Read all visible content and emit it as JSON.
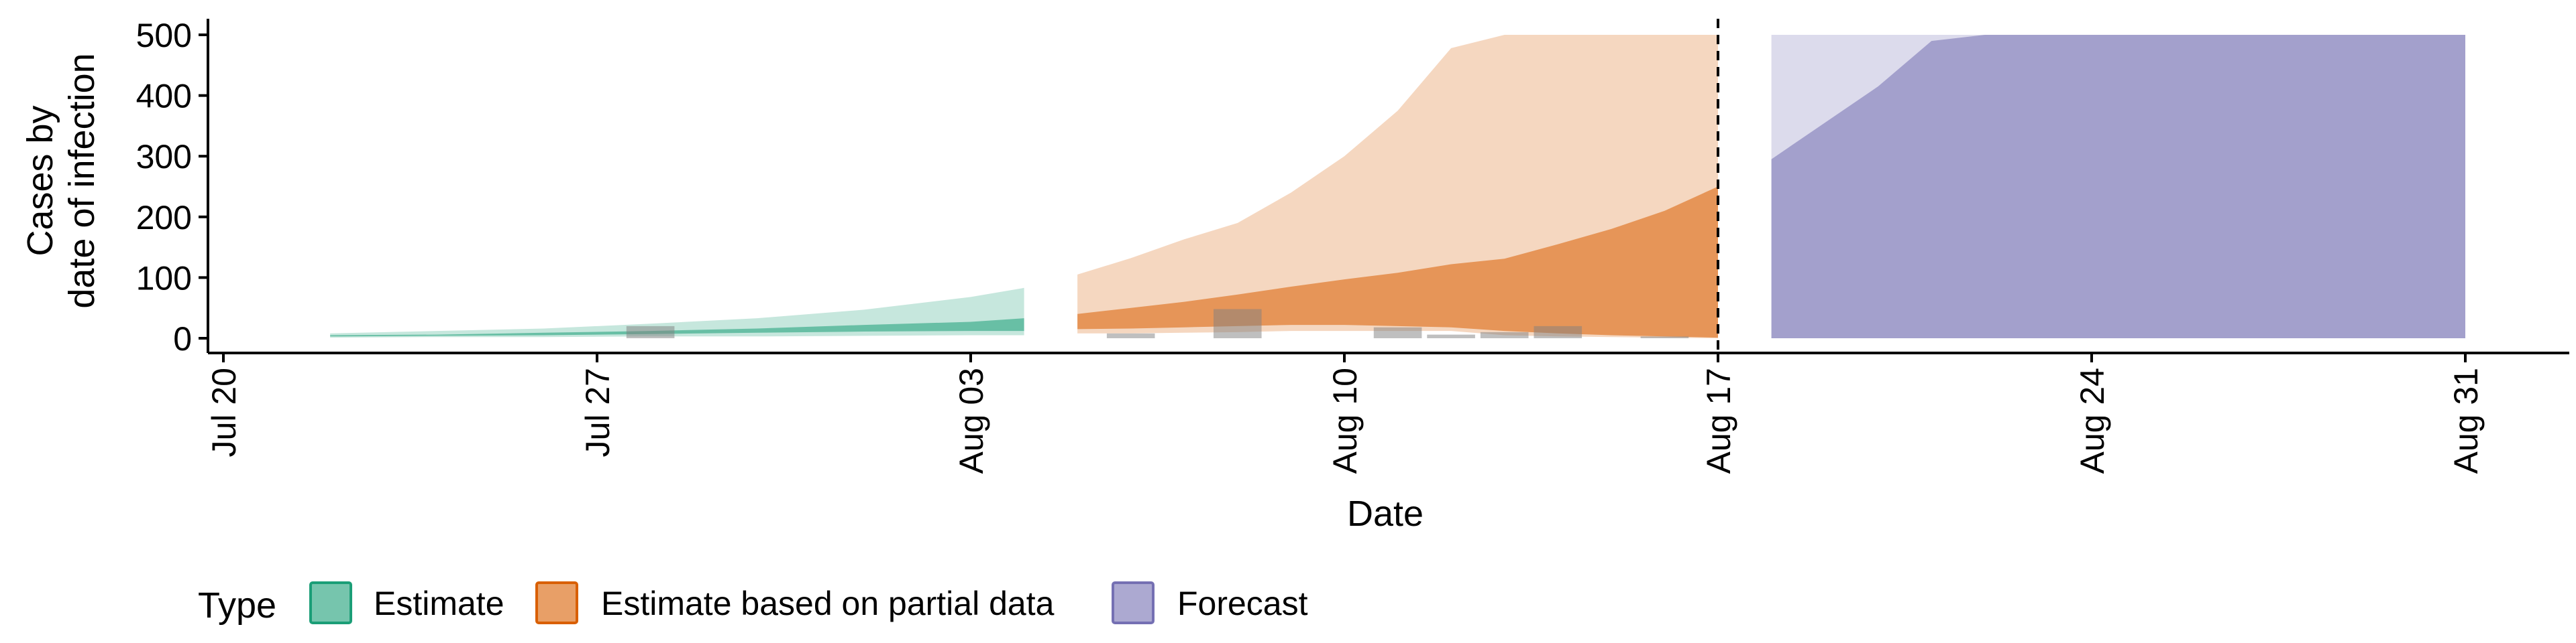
{
  "chart_data": {
    "type": "area",
    "title": "",
    "xlabel": "Date",
    "ylabel_lines": [
      "Cases by",
      "date of infection"
    ],
    "x_ticks": [
      "2020-07-20",
      "2020-07-27",
      "2020-08-03",
      "2020-08-10",
      "2020-08-17",
      "2020-08-24",
      "2020-08-31"
    ],
    "x_tick_labels": [
      "Jul 20",
      "Jul 27",
      "Aug 03",
      "Aug 10",
      "Aug 17",
      "Aug 24",
      "Aug 31"
    ],
    "y_ticks": [
      0,
      100,
      200,
      300,
      400,
      500
    ],
    "xlim": [
      "2020-07-20",
      "2020-08-31"
    ],
    "ylim": [
      -25,
      525
    ],
    "vline_date": "2020-08-17",
    "legend": {
      "title": "Type",
      "position": "bottom",
      "items": [
        {
          "label": "Estimate",
          "color": "#1b9e77"
        },
        {
          "label": "Estimate based on partial data",
          "color": "#d95f02"
        },
        {
          "label": "Forecast",
          "color": "#7570b3"
        }
      ]
    },
    "series": [
      {
        "name": "Estimate",
        "color": "#1b9e77",
        "bands": [
          {
            "interval": "outer",
            "opacity": 0.25,
            "x": [
              "2020-07-22",
              "2020-07-24",
              "2020-07-26",
              "2020-07-28",
              "2020-07-30",
              "2020-08-01",
              "2020-08-03",
              "2020-08-04"
            ],
            "lower": [
              1,
              2,
              2,
              3,
              3,
              4,
              5,
              5
            ],
            "upper": [
              8,
              12,
              16,
              24,
              33,
              47,
              68,
              83
            ]
          },
          {
            "interval": "inner",
            "opacity": 0.55,
            "x": [
              "2020-07-22",
              "2020-07-24",
              "2020-07-26",
              "2020-07-28",
              "2020-07-30",
              "2020-08-01",
              "2020-08-03",
              "2020-08-04"
            ],
            "lower": [
              3,
              4,
              5,
              7,
              9,
              11,
              12,
              12
            ],
            "upper": [
              5,
              6,
              9,
              12,
              16,
              22,
              27,
              33
            ]
          }
        ]
      },
      {
        "name": "Estimate based on partial data",
        "color": "#d95f02",
        "bands": [
          {
            "interval": "outer",
            "opacity": 0.25,
            "x": [
              "2020-08-05",
              "2020-08-06",
              "2020-08-07",
              "2020-08-08",
              "2020-08-09",
              "2020-08-10",
              "2020-08-11",
              "2020-08-12",
              "2020-08-13",
              "2020-08-14",
              "2020-08-15",
              "2020-08-16",
              "2020-08-17"
            ],
            "lower": [
              8,
              8,
              9,
              10,
              12,
              12,
              12,
              12,
              5,
              3,
              2,
              1,
              0
            ],
            "upper": [
              105,
              132,
              163,
              190,
              240,
              300,
              375,
              478,
              500,
              500,
              500,
              500,
              500
            ]
          },
          {
            "interval": "inner",
            "opacity": 0.55,
            "x": [
              "2020-08-05",
              "2020-08-06",
              "2020-08-07",
              "2020-08-08",
              "2020-08-09",
              "2020-08-10",
              "2020-08-11",
              "2020-08-12",
              "2020-08-13",
              "2020-08-14",
              "2020-08-15",
              "2020-08-16",
              "2020-08-17"
            ],
            "lower": [
              15,
              16,
              18,
              20,
              22,
              22,
              20,
              18,
              12,
              8,
              5,
              3,
              1
            ],
            "upper": [
              40,
              50,
              60,
              72,
              85,
              97,
              108,
              122,
              131,
              155,
              180,
              210,
              250
            ]
          }
        ]
      },
      {
        "name": "Forecast",
        "color": "#7570b3",
        "bands": [
          {
            "interval": "outer",
            "opacity": 0.25,
            "x": [
              "2020-08-18",
              "2020-08-31"
            ],
            "lower": [
              0,
              0
            ],
            "upper": [
              500,
              500
            ]
          },
          {
            "interval": "inner",
            "opacity": 0.55,
            "x": [
              "2020-08-18",
              "2020-08-19",
              "2020-08-20",
              "2020-08-21",
              "2020-08-22",
              "2020-08-23",
              "2020-08-31"
            ],
            "lower": [
              0,
              0,
              0,
              0,
              0,
              0,
              0
            ],
            "upper": [
              295,
              355,
              415,
              490,
              500,
              500,
              500
            ]
          }
        ]
      }
    ],
    "reported_cases": {
      "color": "#808080",
      "opacity": 0.5,
      "points": [
        {
          "x": "2020-07-28",
          "y": 20
        },
        {
          "x": "2020-08-06",
          "y": 8
        },
        {
          "x": "2020-08-08",
          "y": 48
        },
        {
          "x": "2020-08-11",
          "y": 18
        },
        {
          "x": "2020-08-12",
          "y": 6
        },
        {
          "x": "2020-08-13",
          "y": 10
        },
        {
          "x": "2020-08-14",
          "y": 20
        },
        {
          "x": "2020-08-16",
          "y": 3
        }
      ]
    }
  }
}
